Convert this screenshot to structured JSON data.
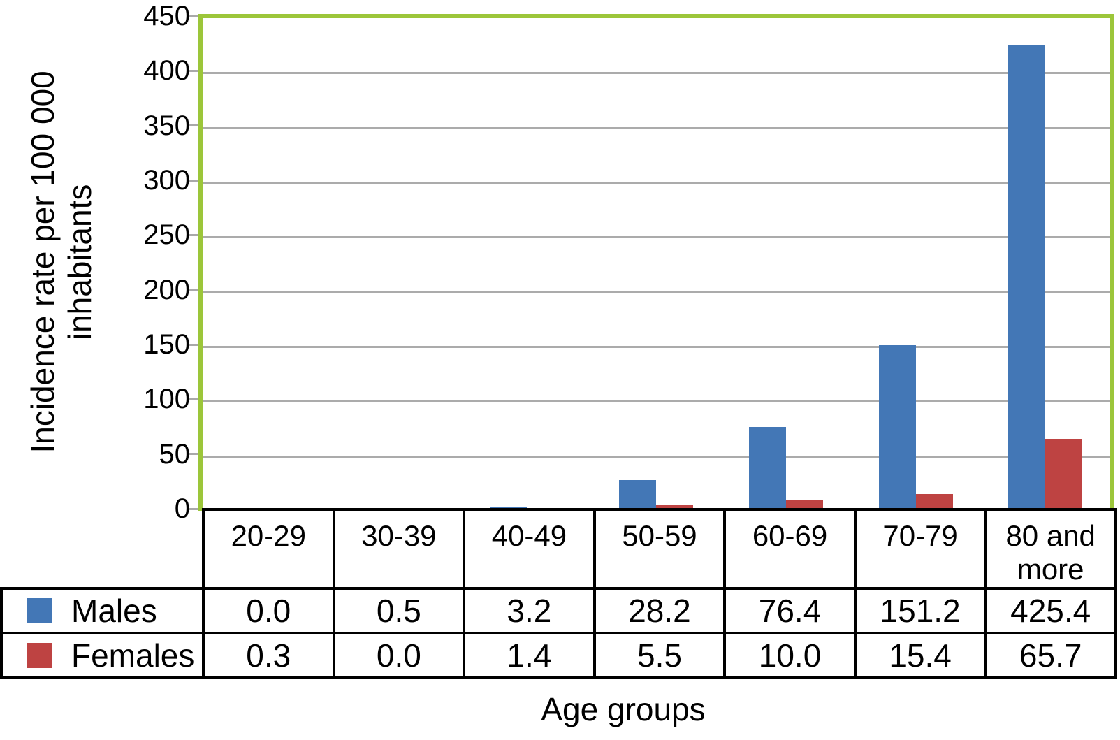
{
  "chart_data": {
    "type": "bar",
    "title": "",
    "categories": [
      "20-29",
      "30-39",
      "40-49",
      "50-59",
      "60-69",
      "70-79",
      "80 and more"
    ],
    "series": [
      {
        "name": "Males",
        "color": "#4377B6",
        "values": [
          0.0,
          0.5,
          3.2,
          28.2,
          76.4,
          151.2,
          425.4
        ]
      },
      {
        "name": "Females",
        "color": "#BE4342",
        "values": [
          0.3,
          0.0,
          1.4,
          5.5,
          10.0,
          15.4,
          65.7
        ]
      }
    ],
    "xlabel": "Age groups",
    "ylabel": "Incidence rate per 100 000 inhabitants",
    "ylabel_lines": [
      "Incidence rate per 100 000",
      "inhabitants"
    ],
    "ylim": [
      0,
      450
    ],
    "yticks": [
      0,
      50,
      100,
      150,
      200,
      250,
      300,
      350,
      400,
      450
    ],
    "grid": true,
    "legend_position": "table-left",
    "value_format": "one-decimal",
    "colors": {
      "axis_frame": "#9CC63A",
      "gridline": "#ABABAB",
      "table_border": "#000000",
      "males": "#4377B6",
      "females": "#BE4342",
      "text": "#000000",
      "background": "#FFFFFF"
    }
  }
}
